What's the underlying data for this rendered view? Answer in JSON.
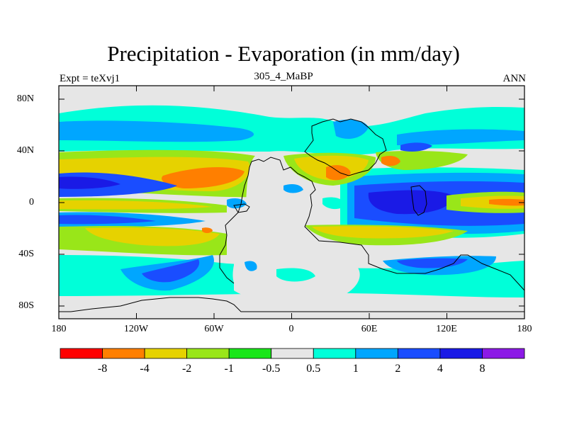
{
  "title": "Precipitation - Evaporation (in mm/day)",
  "left_label": "Expt = teXvj1",
  "center_label": "305_4_MaBP",
  "right_label": "ANN",
  "y_ticks": [
    "80N",
    "40N",
    "0",
    "40S",
    "80S"
  ],
  "x_ticks": [
    "180",
    "120W",
    "60W",
    "0",
    "60E",
    "120E",
    "180"
  ],
  "colorbar": {
    "colors": [
      "#ff0000",
      "#ff7f00",
      "#e6d200",
      "#99e619",
      "#19e619",
      "#e6e6e6",
      "#00ffd9",
      "#00a6ff",
      "#1a4dff",
      "#1a1ae6",
      "#8c1ae6"
    ],
    "labels": [
      "-8",
      "-4",
      "-2",
      "-1",
      "-0.5",
      "0.5",
      "1",
      "2",
      "4",
      "8"
    ]
  },
  "legend_semantics": {
    "field": "Precipitation minus Evaporation",
    "units": "mm/day",
    "projection": "cylindrical equidistant",
    "lon_range": [
      -180,
      180
    ],
    "lat_range": [
      -90,
      90
    ]
  }
}
